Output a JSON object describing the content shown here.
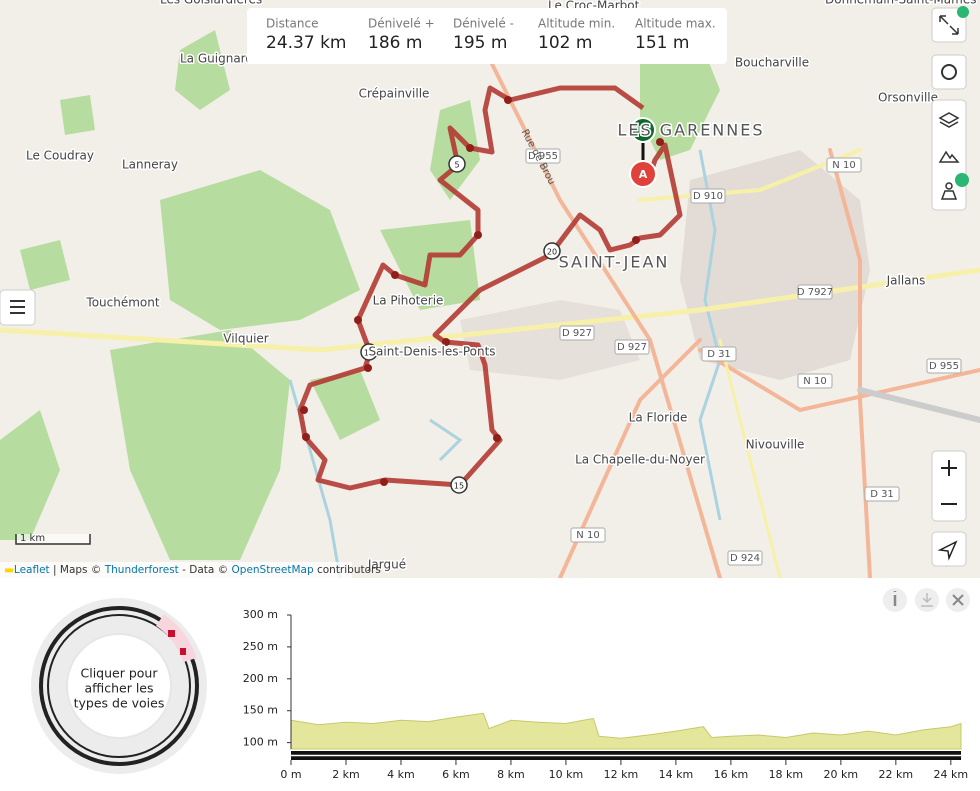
{
  "map": {
    "stats": [
      {
        "label": "Distance",
        "value": "24.37 km"
      },
      {
        "label": "Dénivelé +",
        "value": "186 m"
      },
      {
        "label": "Dénivelé -",
        "value": "195 m"
      },
      {
        "label": "Altitude min.",
        "value": "102 m"
      },
      {
        "label": "Altitude max.",
        "value": "151 m"
      }
    ],
    "places": [
      "Les Goislardières",
      "La Guignard",
      "Crépainville",
      "Le Croc-Marbot",
      "Donnemain-Saint-Mamès",
      "Boucharville",
      "Orsonville",
      "Le Coudray",
      "Lanneray",
      "Touchémont",
      "La Pihoterie",
      "Vilquier",
      "Saint-Denis-les-Ponts",
      "Jallans",
      "La Floride",
      "Nivouville",
      "La Chapelle-du-Noyer",
      "Jargué"
    ],
    "districts": [
      "LES GARENNES",
      "SAINT-JEAN"
    ],
    "roads": [
      "D 955",
      "D 910",
      "N 10",
      "D 7927",
      "D 927",
      "D 927",
      "D 31",
      "N 10",
      "D 955",
      "D 31",
      "N 10",
      "D 924",
      "Rue de Brou"
    ],
    "start": "D",
    "end": "A",
    "km_markers": [
      "5",
      "10",
      "15",
      "20"
    ],
    "scale": "1 km",
    "attribution": [
      "Leaflet",
      " | Maps © ",
      "Thunderforest",
      " - Data © ",
      "OpenStreetMap",
      " contributors"
    ]
  },
  "surface": {
    "caption": [
      "Cliquer pour",
      "afficher les",
      "types de voies"
    ]
  },
  "chart_data": {
    "type": "area",
    "color": "#e4e69c",
    "x": [
      0,
      1,
      2,
      3,
      4,
      5,
      6,
      7,
      7.2,
      8,
      9,
      10,
      11,
      11.2,
      12,
      13,
      14,
      15,
      15.3,
      16,
      17,
      18,
      19,
      20,
      21,
      22,
      23,
      24,
      24.37
    ],
    "values": [
      135,
      128,
      132,
      130,
      135,
      133,
      140,
      146,
      122,
      135,
      132,
      130,
      138,
      110,
      107,
      112,
      118,
      125,
      108,
      110,
      112,
      108,
      115,
      112,
      118,
      112,
      120,
      125,
      130
    ],
    "xlim": [
      0,
      24.37
    ],
    "ylim": [
      90,
      300
    ],
    "xticks": [
      {
        "value": 0,
        "label": "0 m"
      },
      {
        "value": 2,
        "label": "2 km"
      },
      {
        "value": 4,
        "label": "4 km"
      },
      {
        "value": 6,
        "label": "6 km"
      },
      {
        "value": 8,
        "label": "8 km"
      },
      {
        "value": 10,
        "label": "10 km"
      },
      {
        "value": 12,
        "label": "12 km"
      },
      {
        "value": 14,
        "label": "14 km"
      },
      {
        "value": 16,
        "label": "16 km"
      },
      {
        "value": 18,
        "label": "18 km"
      },
      {
        "value": 20,
        "label": "20 km"
      },
      {
        "value": 22,
        "label": "22 km"
      },
      {
        "value": 24,
        "label": "24 km"
      }
    ],
    "yticks": [
      {
        "value": 100,
        "label": "100 m"
      },
      {
        "value": 150,
        "label": "150 m"
      },
      {
        "value": 200,
        "label": "200 m"
      },
      {
        "value": 250,
        "label": "250 m"
      },
      {
        "value": 300,
        "label": "300 m"
      }
    ]
  }
}
